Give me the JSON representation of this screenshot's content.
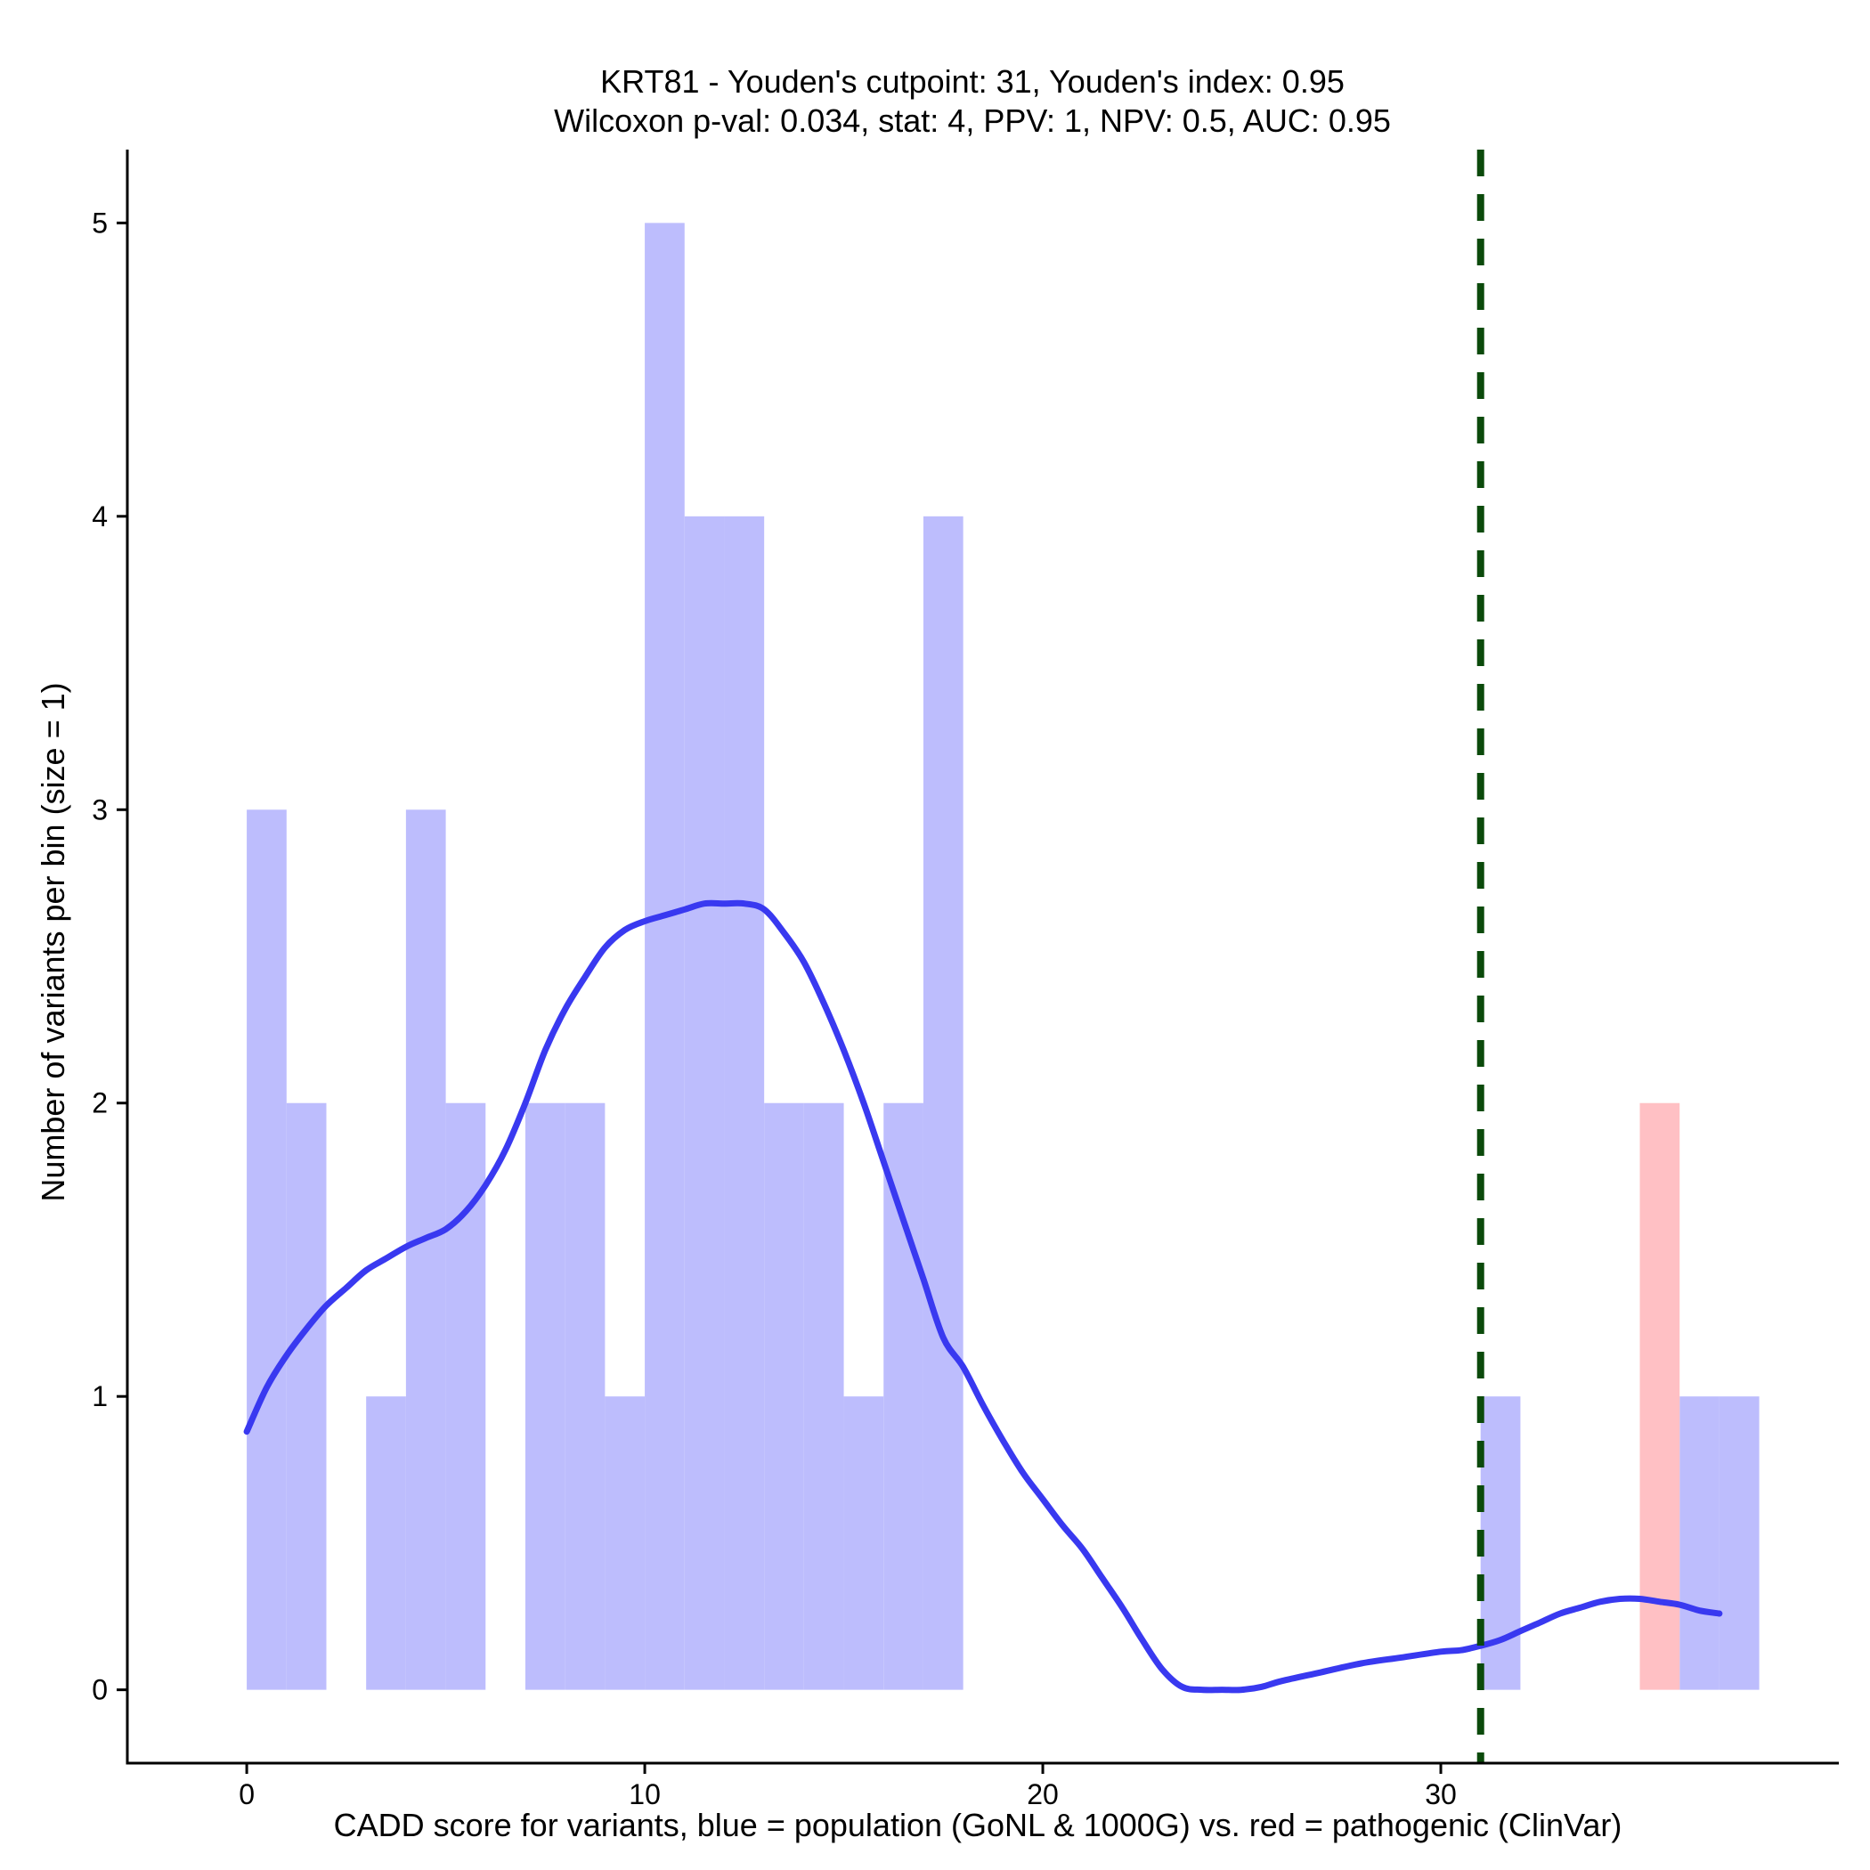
{
  "chart_data": {
    "type": "bar",
    "title_lines": [
      "KRT81 - Youden's cutpoint: 31, Youden's index: 0.95",
      "Wilcoxon p-val: 0.034, stat: 4, PPV: 1, NPV: 0.5, AUC: 0.95"
    ],
    "xlabel": "CADD score for variants, blue = population (GoNL & 1000G) vs. red = pathogenic (ClinVar)",
    "ylabel": "Number of variants per bin (size = 1)",
    "xlim": [
      -3,
      40
    ],
    "ylim": [
      -0.25,
      5.25
    ],
    "x_ticks": [
      0,
      10,
      20,
      30
    ],
    "y_ticks": [
      0,
      1,
      2,
      3,
      4,
      5
    ],
    "bin_width": 1,
    "colors": {
      "population_fill": "#bdbdfd",
      "pathogenic_fill": "#ffc0c4",
      "density_line": "#3939f0",
      "cutpoint_line": "#0b4a0b",
      "axis": "#000000"
    },
    "series": [
      {
        "name": "population (GoNL & 1000G)",
        "bins": [
          {
            "x": 0,
            "count": 3
          },
          {
            "x": 1,
            "count": 2
          },
          {
            "x": 3,
            "count": 1
          },
          {
            "x": 4,
            "count": 3
          },
          {
            "x": 5,
            "count": 2
          },
          {
            "x": 7,
            "count": 2
          },
          {
            "x": 8,
            "count": 2
          },
          {
            "x": 9,
            "count": 1
          },
          {
            "x": 10,
            "count": 5
          },
          {
            "x": 11,
            "count": 4
          },
          {
            "x": 12,
            "count": 4
          },
          {
            "x": 13,
            "count": 2
          },
          {
            "x": 14,
            "count": 2
          },
          {
            "x": 15,
            "count": 1
          },
          {
            "x": 16,
            "count": 2
          },
          {
            "x": 17,
            "count": 4
          },
          {
            "x": 31,
            "count": 1
          },
          {
            "x": 36,
            "count": 1
          },
          {
            "x": 37,
            "count": 1
          }
        ]
      },
      {
        "name": "pathogenic (ClinVar)",
        "bins": [
          {
            "x": 35,
            "count": 2
          }
        ]
      }
    ],
    "density_curve": {
      "name": "population density",
      "points": [
        [
          0,
          0.88
        ],
        [
          0.5,
          1.03
        ],
        [
          1,
          1.14
        ],
        [
          1.5,
          1.23
        ],
        [
          2,
          1.31
        ],
        [
          2.5,
          1.37
        ],
        [
          3,
          1.43
        ],
        [
          3.5,
          1.47
        ],
        [
          4,
          1.51
        ],
        [
          4.5,
          1.54
        ],
        [
          5,
          1.57
        ],
        [
          5.5,
          1.63
        ],
        [
          6,
          1.72
        ],
        [
          6.5,
          1.84
        ],
        [
          7,
          2.0
        ],
        [
          7.5,
          2.18
        ],
        [
          8,
          2.32
        ],
        [
          8.5,
          2.43
        ],
        [
          9,
          2.53
        ],
        [
          9.5,
          2.59
        ],
        [
          10,
          2.62
        ],
        [
          10.5,
          2.64
        ],
        [
          11,
          2.66
        ],
        [
          11.5,
          2.68
        ],
        [
          12,
          2.68
        ],
        [
          12.5,
          2.68
        ],
        [
          13,
          2.66
        ],
        [
          13.5,
          2.58
        ],
        [
          14,
          2.48
        ],
        [
          14.5,
          2.34
        ],
        [
          15,
          2.18
        ],
        [
          15.5,
          2.0
        ],
        [
          16,
          1.8
        ],
        [
          16.5,
          1.6
        ],
        [
          17,
          1.4
        ],
        [
          17.5,
          1.2
        ],
        [
          18,
          1.1
        ],
        [
          18.5,
          0.97
        ],
        [
          19,
          0.85
        ],
        [
          19.5,
          0.74
        ],
        [
          20,
          0.65
        ],
        [
          20.5,
          0.56
        ],
        [
          21,
          0.48
        ],
        [
          21.5,
          0.38
        ],
        [
          22,
          0.28
        ],
        [
          22.5,
          0.17
        ],
        [
          23,
          0.07
        ],
        [
          23.5,
          0.01
        ],
        [
          24,
          0.0
        ],
        [
          24.5,
          0.0
        ],
        [
          25,
          0.0
        ],
        [
          25.5,
          0.01
        ],
        [
          26,
          0.03
        ],
        [
          27,
          0.06
        ],
        [
          28,
          0.09
        ],
        [
          29,
          0.11
        ],
        [
          30,
          0.13
        ],
        [
          30.5,
          0.135
        ],
        [
          31,
          0.15
        ],
        [
          31.5,
          0.17
        ],
        [
          32,
          0.2
        ],
        [
          32.5,
          0.23
        ],
        [
          33,
          0.26
        ],
        [
          33.5,
          0.28
        ],
        [
          34,
          0.3
        ],
        [
          34.5,
          0.31
        ],
        [
          35,
          0.31
        ],
        [
          35.5,
          0.3
        ],
        [
          36,
          0.29
        ],
        [
          36.5,
          0.27
        ],
        [
          37,
          0.26
        ]
      ]
    },
    "cutpoint": {
      "name": "Youden's cutpoint",
      "x": 31
    }
  }
}
